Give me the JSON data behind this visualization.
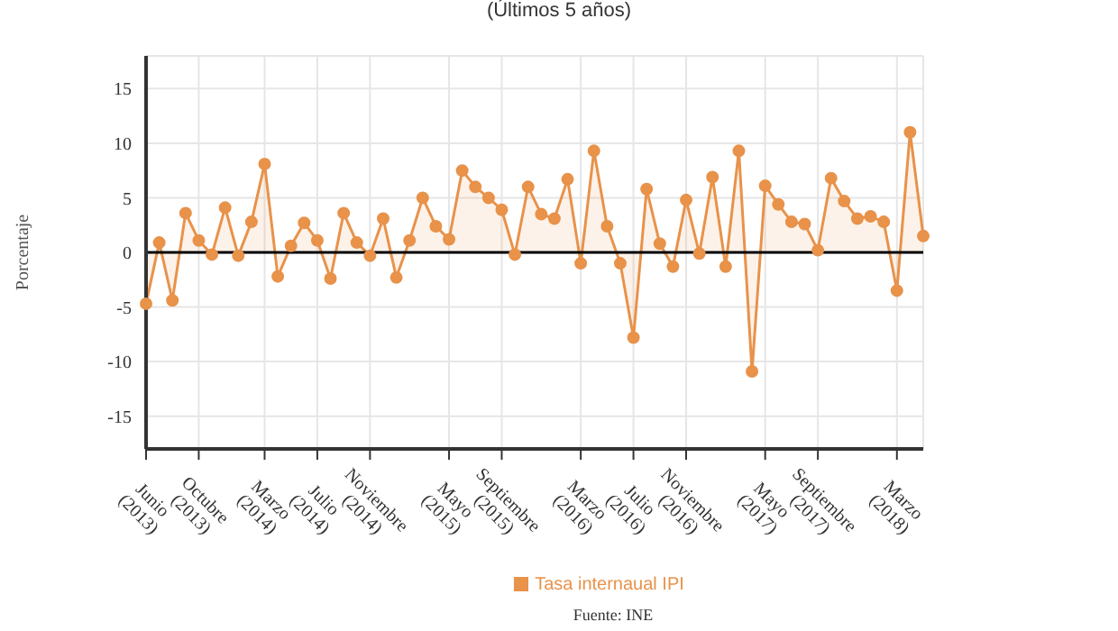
{
  "chart_data": {
    "type": "area",
    "title": "(Últimos 5 años)",
    "ylabel": "Porcentaje",
    "categories": [
      "Junio (2013)",
      null,
      null,
      null,
      "Octubre (2013)",
      null,
      null,
      null,
      null,
      "Marzo (2014)",
      null,
      null,
      null,
      "Julio (2014)",
      null,
      null,
      null,
      "Noviembre (2014)",
      null,
      null,
      null,
      null,
      null,
      "Mayo (2015)",
      null,
      null,
      null,
      "Septiembre (2015)",
      null,
      null,
      null,
      null,
      null,
      "Marzo (2016)",
      null,
      null,
      null,
      "Julio (2016)",
      null,
      null,
      null,
      "Noviembre (2016)",
      null,
      null,
      null,
      null,
      null,
      "Mayo (2017)",
      null,
      null,
      null,
      "Septiembre (2017)",
      null,
      null,
      null,
      null,
      null,
      "Marzo (2018)",
      null,
      null
    ],
    "series": [
      {
        "name": "Tasa internaual IPI",
        "color": "#e8924a",
        "values": [
          -4.7,
          0.9,
          -4.4,
          3.6,
          1.1,
          -0.2,
          4.1,
          -0.3,
          2.8,
          8.1,
          -2.2,
          0.6,
          2.7,
          1.1,
          -2.4,
          3.6,
          0.9,
          -0.3,
          3.1,
          -2.3,
          1.1,
          5.0,
          2.4,
          1.2,
          7.5,
          6.0,
          5.0,
          3.9,
          -0.2,
          6.0,
          3.5,
          3.1,
          6.7,
          -1.0,
          9.3,
          2.4,
          -1.0,
          -7.8,
          5.8,
          0.8,
          -1.3,
          4.8,
          -0.1,
          6.9,
          -1.3,
          9.3,
          -10.9,
          6.1,
          4.4,
          2.8,
          2.6,
          0.2,
          6.8,
          4.7,
          3.1,
          3.3,
          2.8,
          -3.5,
          11.0,
          1.5
        ]
      }
    ],
    "ylim": [
      -18,
      18
    ],
    "yticks": [
      -15,
      -10,
      -5,
      0,
      5,
      10,
      15
    ],
    "grid": true,
    "legend": "bottom",
    "marker": "circle",
    "ref_lines": [
      {
        "axis": "y",
        "value": 0,
        "color": "#000000"
      }
    ],
    "annotations": [
      "Fuente: INE"
    ]
  }
}
